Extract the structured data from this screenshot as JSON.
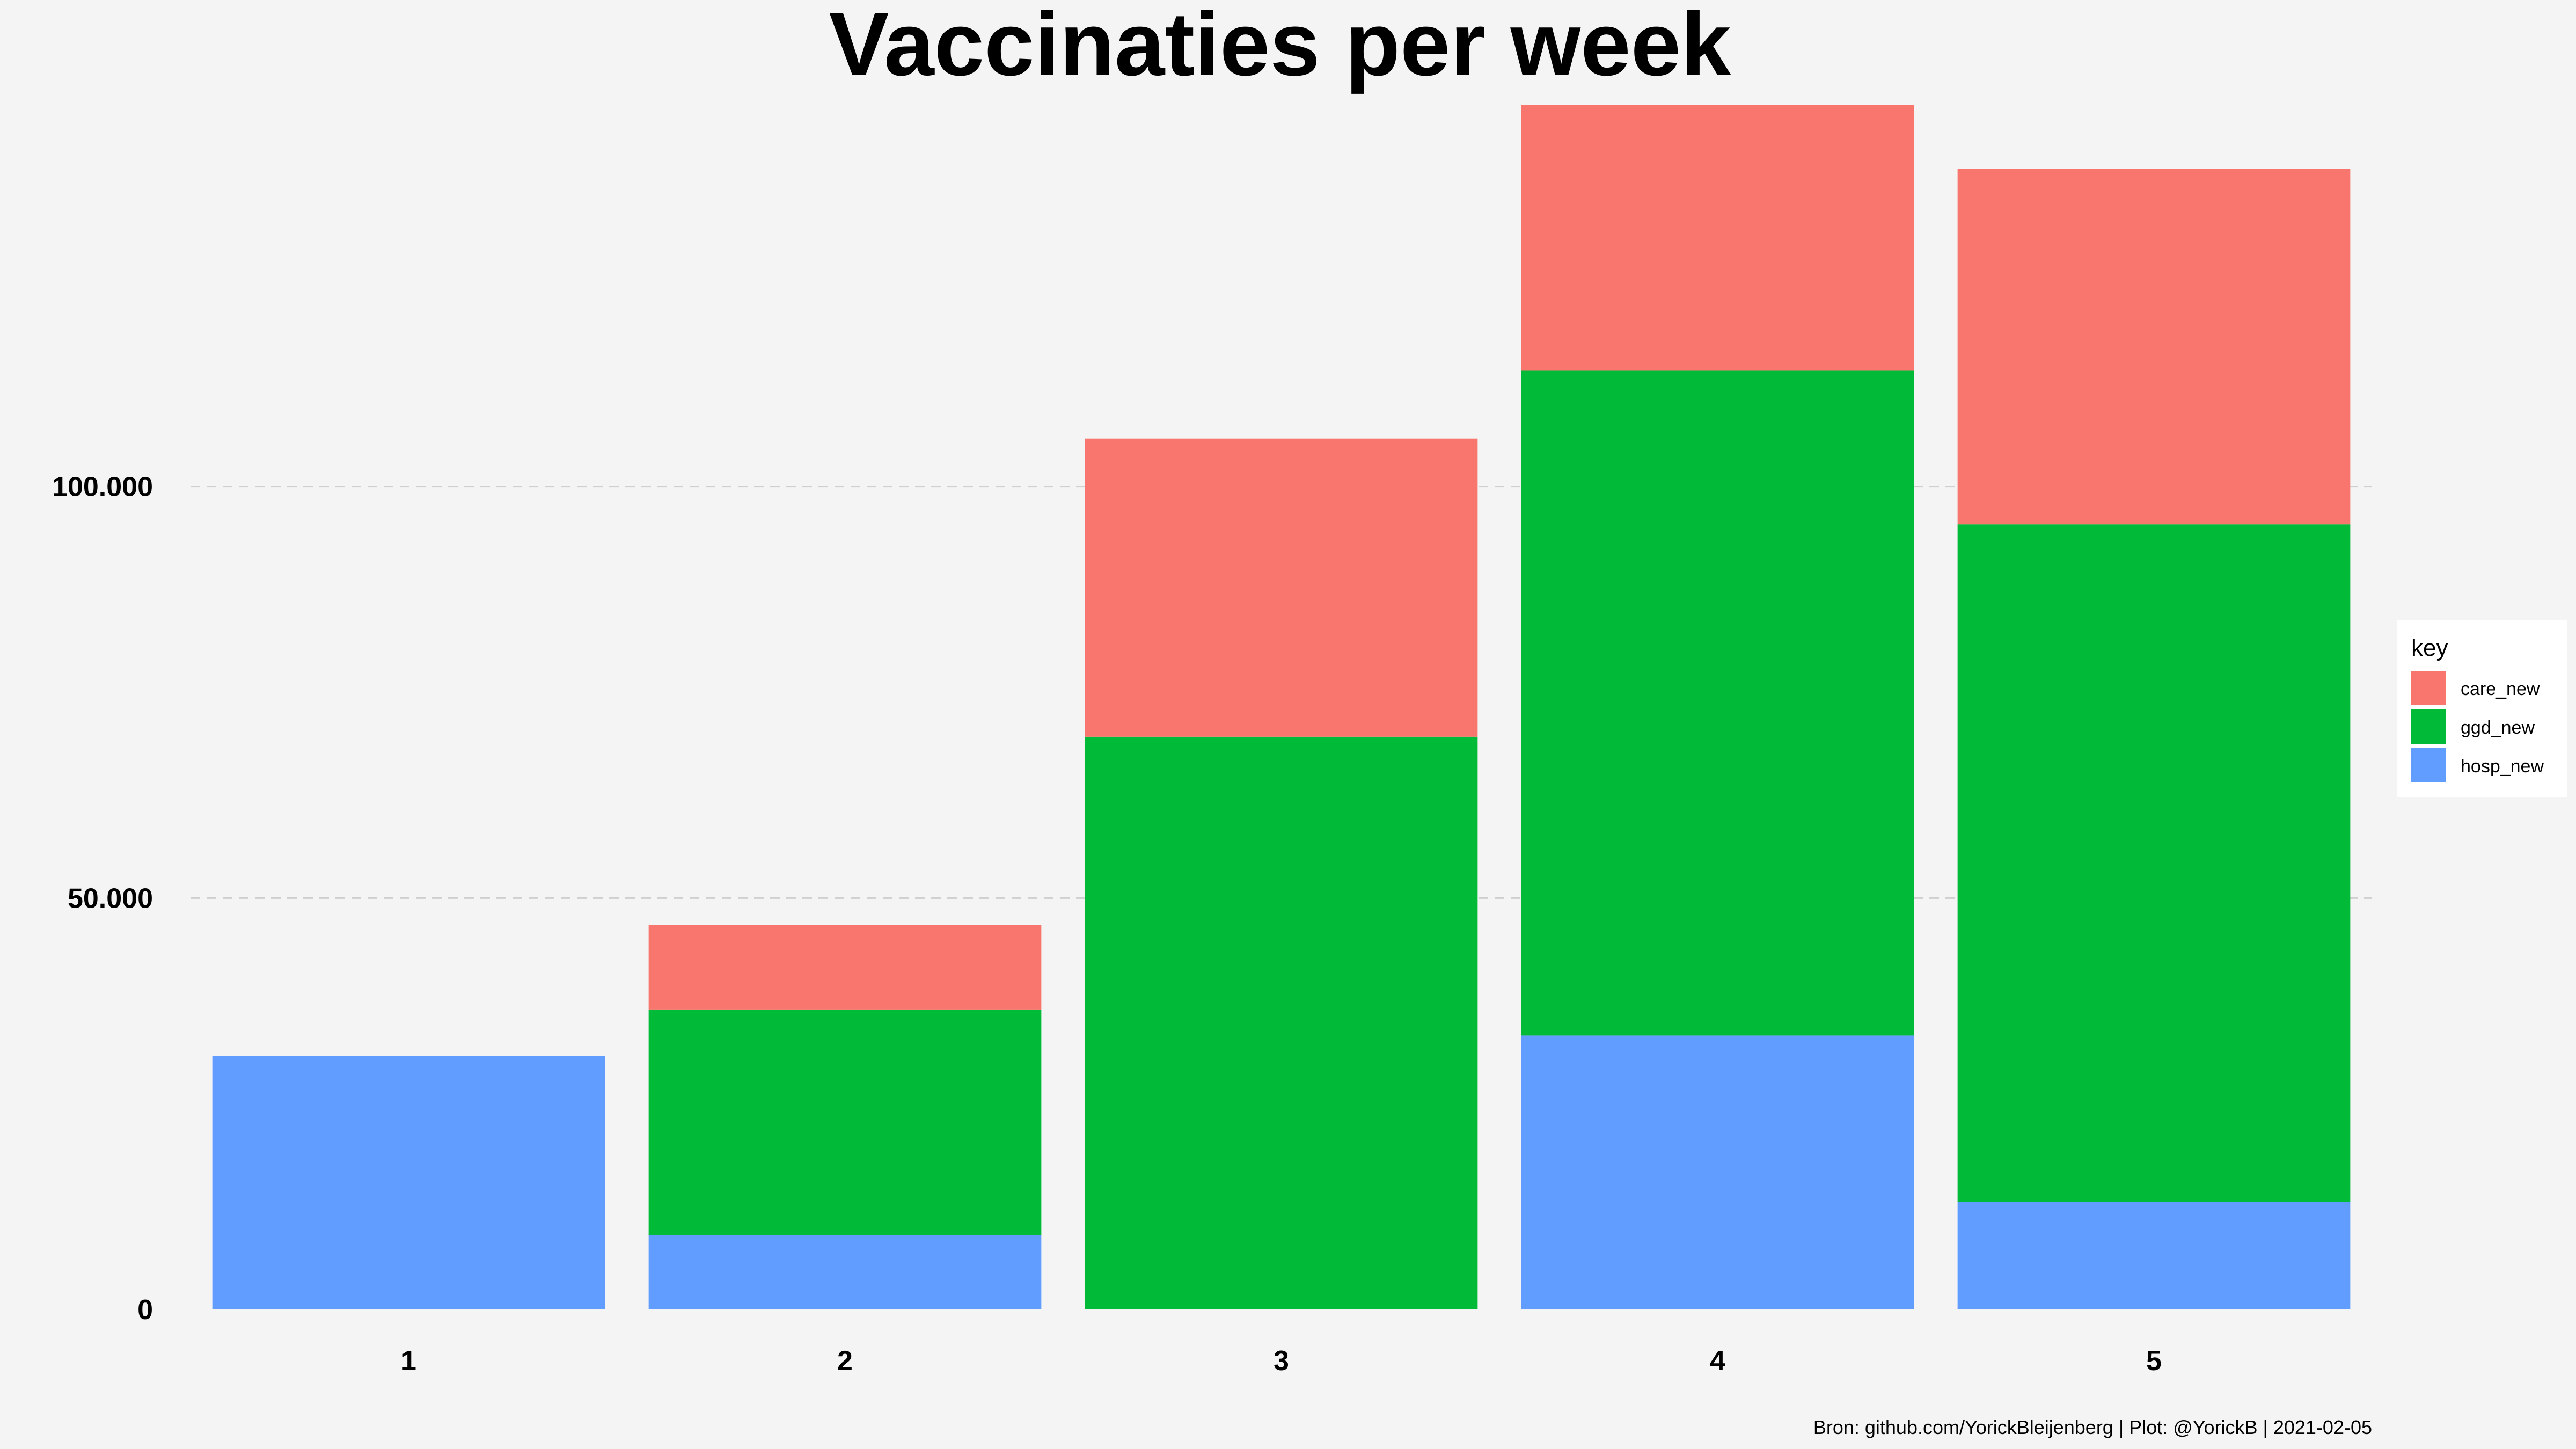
{
  "chart_data": {
    "type": "bar",
    "stacked": true,
    "title": "Vaccinaties per week",
    "xlabel": "",
    "ylabel": "",
    "categories": [
      "1",
      "2",
      "3",
      "4",
      "5"
    ],
    "series": [
      {
        "name": "care_new",
        "color": "#F8766D",
        "values": [
          0,
          10300,
          36200,
          32300,
          43200
        ]
      },
      {
        "name": "ggd_new",
        "color": "#00BA38",
        "values": [
          0,
          27400,
          69600,
          80800,
          82300
        ]
      },
      {
        "name": "hosp_new",
        "color": "#619CFF",
        "values": [
          30800,
          9000,
          0,
          33300,
          13100
        ]
      }
    ],
    "ylim": [
      0,
      150000
    ],
    "yticks": [
      {
        "value": 0,
        "label": "0"
      },
      {
        "value": 50000,
        "label": "50.000"
      },
      {
        "value": 100000,
        "label": "100.000"
      }
    ],
    "grid": true,
    "legend": {
      "title": "key",
      "position": "right"
    },
    "caption": "Bron: github.com/YorickBleijenberg | Plot: @YorickB  |  2021-02-05"
  }
}
